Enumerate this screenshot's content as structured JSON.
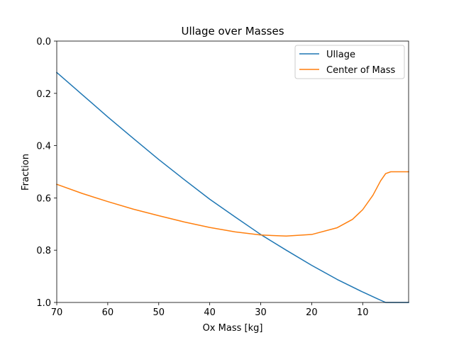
{
  "chart_data": {
    "type": "line",
    "title": "Ullage over Masses",
    "xlabel": "Ox Mass [kg]",
    "ylabel": "Fraction",
    "xlim": [
      70,
      1
    ],
    "ylim": [
      1.0,
      0.0
    ],
    "x_inverted": true,
    "y_inverted": true,
    "xticks": [
      70,
      60,
      50,
      40,
      30,
      20,
      10
    ],
    "xtick_labels": [
      "70",
      "60",
      "50",
      "40",
      "30",
      "20",
      "10"
    ],
    "yticks": [
      0.0,
      0.2,
      0.4,
      0.6,
      0.8,
      1.0
    ],
    "ytick_labels": [
      "0.0",
      "0.2",
      "0.4",
      "0.6",
      "0.8",
      "1.0"
    ],
    "grid": false,
    "legend_position": "top-right",
    "series": [
      {
        "name": "Ullage",
        "color": "#1f77b4",
        "x": [
          70,
          65,
          60,
          55,
          50,
          45,
          40,
          35,
          30,
          25,
          20,
          15,
          10,
          7,
          5.5,
          4,
          1
        ],
        "y": [
          0.12,
          0.205,
          0.29,
          0.372,
          0.453,
          0.53,
          0.605,
          0.673,
          0.74,
          0.8,
          0.858,
          0.912,
          0.96,
          0.987,
          1.0,
          1.0,
          1.0
        ]
      },
      {
        "name": "Center of Mass",
        "color": "#ff7f0e",
        "x": [
          70,
          65,
          60,
          55,
          50,
          45,
          40,
          35,
          30,
          25,
          20,
          15,
          12,
          10,
          8,
          6.5,
          5.5,
          4.5,
          3,
          1
        ],
        "y": [
          0.548,
          0.583,
          0.614,
          0.643,
          0.668,
          0.692,
          0.713,
          0.73,
          0.742,
          0.746,
          0.74,
          0.714,
          0.682,
          0.645,
          0.59,
          0.535,
          0.507,
          0.5,
          0.5,
          0.5
        ]
      }
    ]
  }
}
